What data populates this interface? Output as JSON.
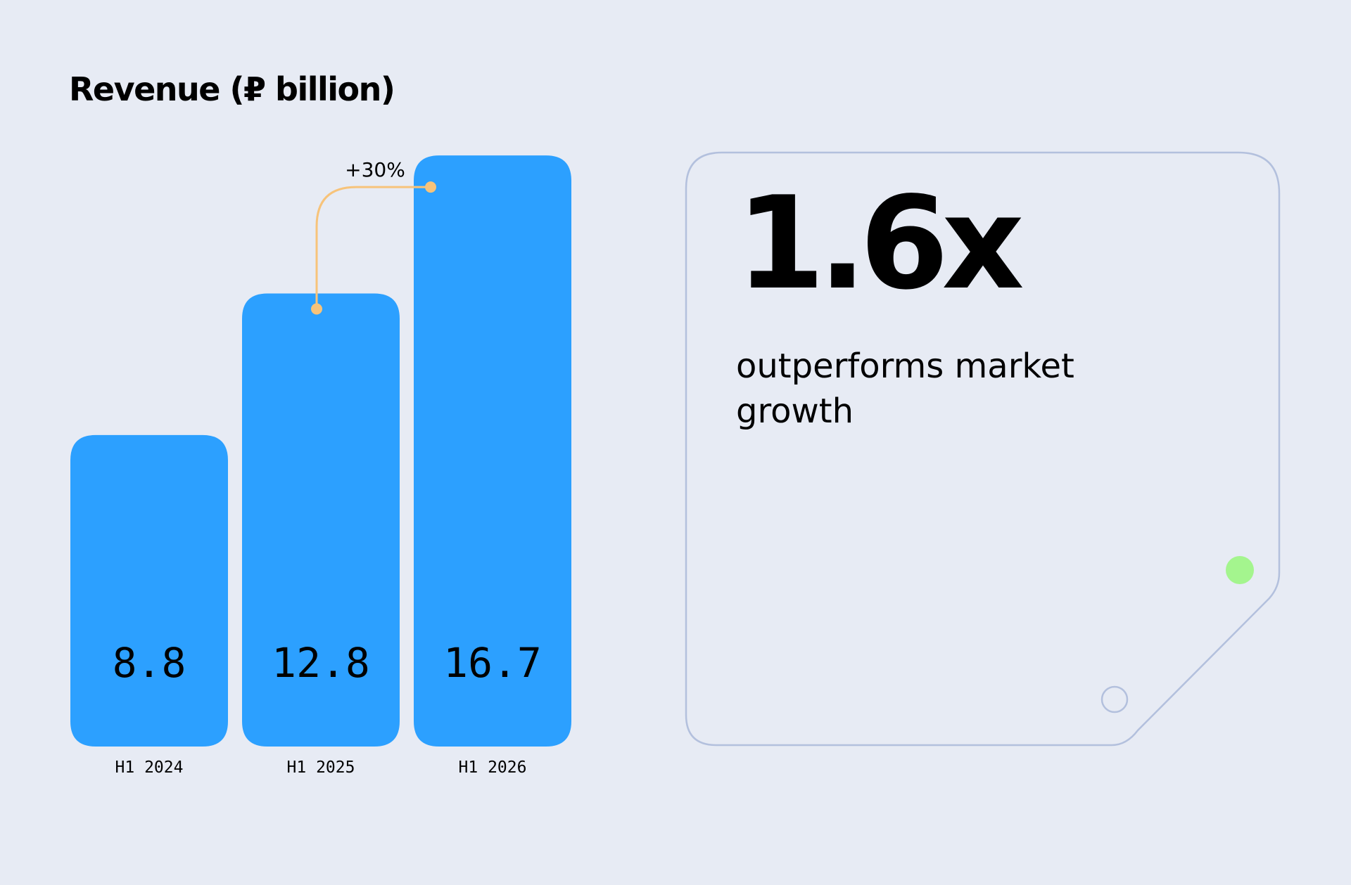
{
  "chart_data": {
    "type": "bar",
    "title": "Revenue (₽ billion)",
    "categories": [
      "H1 2024",
      "H1 2025",
      "H1 2026"
    ],
    "values": [
      8.8,
      12.8,
      16.7
    ],
    "value_labels": [
      "8.8",
      "12.8",
      "16.7"
    ],
    "annotation": {
      "label": "+30%",
      "from": "H1 2025",
      "to": "H1 2026"
    },
    "bar_color": "#2CA0FF",
    "annotation_color": "#F7C37A",
    "grid": false,
    "legend": "none"
  },
  "card": {
    "stat": "1.6x",
    "caption": "outperforms market growth",
    "border_color": "#B3C0DD",
    "dot_color": "#A4F58E"
  }
}
